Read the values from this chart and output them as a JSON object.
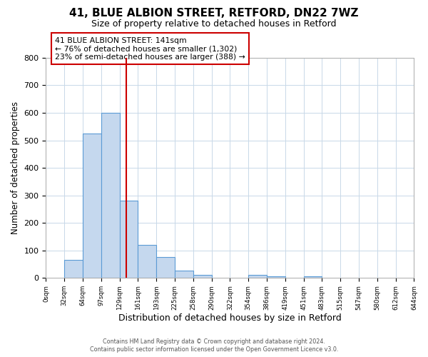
{
  "title": "41, BLUE ALBION STREET, RETFORD, DN22 7WZ",
  "subtitle": "Size of property relative to detached houses in Retford",
  "xlabel": "Distribution of detached houses by size in Retford",
  "ylabel": "Number of detached properties",
  "footer_line1": "Contains HM Land Registry data © Crown copyright and database right 2024.",
  "footer_line2": "Contains public sector information licensed under the Open Government Licence v3.0.",
  "bin_edges": [
    0,
    32,
    64,
    97,
    129,
    161,
    193,
    225,
    258,
    290,
    322,
    354,
    386,
    419,
    451,
    483,
    515,
    547,
    580,
    612,
    644
  ],
  "bar_heights": [
    0,
    65,
    525,
    600,
    280,
    120,
    75,
    28,
    12,
    0,
    0,
    10,
    5,
    0,
    5,
    0,
    0,
    0,
    0,
    0
  ],
  "bar_color": "#c5d8ee",
  "bar_edge_color": "#5b9bd5",
  "vline_x": 141,
  "vline_color": "#cc0000",
  "annotation_line1": "41 BLUE ALBION STREET: 141sqm",
  "annotation_line2": "← 76% of detached houses are smaller (1,302)",
  "annotation_line3": "23% of semi-detached houses are larger (388) →",
  "annotation_box_color": "#cc0000",
  "ylim": [
    0,
    800
  ],
  "yticks": [
    0,
    100,
    200,
    300,
    400,
    500,
    600,
    700,
    800
  ],
  "xtick_labels": [
    "0sqm",
    "32sqm",
    "64sqm",
    "97sqm",
    "129sqm",
    "161sqm",
    "193sqm",
    "225sqm",
    "258sqm",
    "290sqm",
    "322sqm",
    "354sqm",
    "386sqm",
    "419sqm",
    "451sqm",
    "483sqm",
    "515sqm",
    "547sqm",
    "580sqm",
    "612sqm",
    "644sqm"
  ],
  "background_color": "#ffffff",
  "grid_color": "#c8d8e8",
  "title_fontsize": 11,
  "subtitle_fontsize": 9
}
